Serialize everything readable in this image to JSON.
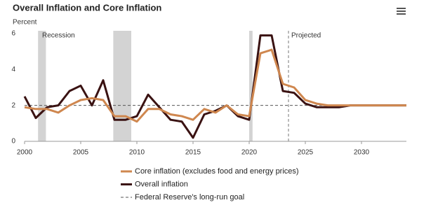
{
  "chart_data": {
    "type": "line",
    "title": "Overall Inflation and Core Inflation",
    "y_label": "Percent",
    "x": [
      2000,
      2001,
      2002,
      2003,
      2004,
      2005,
      2006,
      2007,
      2008,
      2009,
      2010,
      2011,
      2012,
      2013,
      2014,
      2015,
      2016,
      2017,
      2018,
      2019,
      2020,
      2021,
      2022,
      2023,
      2024,
      2025,
      2026,
      2027,
      2028,
      2029,
      2030,
      2031,
      2032,
      2033,
      2034
    ],
    "series": [
      {
        "name": "Core inflation (excludes food and energy prices)",
        "color": "#cf874f",
        "values": [
          1.9,
          1.8,
          1.8,
          1.6,
          2.0,
          2.3,
          2.4,
          2.3,
          1.4,
          1.4,
          1.1,
          1.8,
          1.8,
          1.5,
          1.4,
          1.2,
          1.8,
          1.6,
          2.0,
          1.5,
          1.4,
          4.9,
          5.1,
          3.2,
          3.0,
          2.3,
          2.1,
          2.0,
          2.0,
          2.0,
          2.0,
          2.0,
          2.0,
          2.0,
          2.0
        ]
      },
      {
        "name": "Overall inflation",
        "color": "#3a1212",
        "values": [
          2.5,
          1.3,
          1.9,
          2.0,
          2.8,
          3.1,
          2.0,
          3.4,
          1.2,
          1.2,
          1.4,
          2.6,
          1.9,
          1.2,
          1.1,
          0.2,
          1.5,
          1.7,
          2.0,
          1.4,
          1.2,
          5.9,
          5.9,
          2.8,
          2.7,
          2.1,
          1.9,
          1.9,
          1.9,
          2.0,
          2.0,
          2.0,
          2.0,
          2.0,
          2.0
        ]
      }
    ],
    "goal": {
      "name": "Federal Reserve's long-run goal",
      "value": 2
    },
    "recession_label": "Recession",
    "recessions": [
      [
        2001.2,
        2001.9
      ],
      [
        2007.9,
        2009.5
      ],
      [
        2020.0,
        2020.3
      ]
    ],
    "projected_label": "Projected",
    "projected_start": 2023.5,
    "xlim": [
      2000,
      2034
    ],
    "xticks": [
      2000,
      2005,
      2010,
      2015,
      2020,
      2025,
      2030
    ],
    "ylim": [
      0,
      6
    ],
    "yticks": [
      0,
      2,
      4,
      6
    ]
  }
}
